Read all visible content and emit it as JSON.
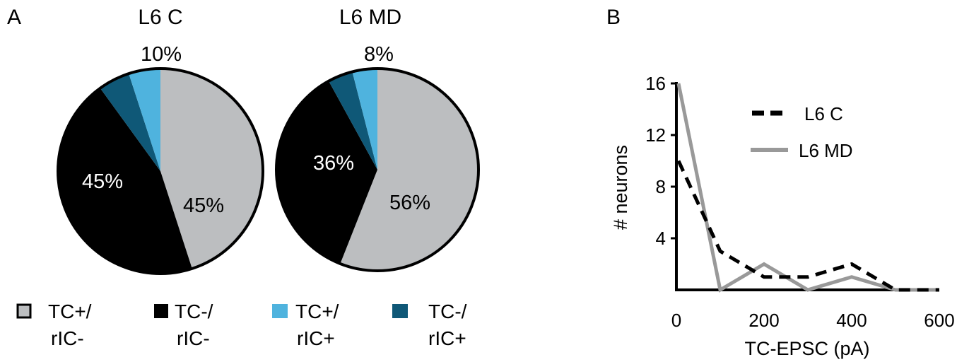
{
  "panels": {
    "a": "A",
    "b": "B"
  },
  "colors": {
    "TC+/rIC-": "#bcbec0",
    "TC-/rIC-": "#000000",
    "TC+/rIC+": "#4fb3de",
    "TC-/rIC+": "#0f5877"
  },
  "legend": [
    {
      "line1": "TC+/",
      "line2": "rIC-",
      "key": "TC+/rIC-"
    },
    {
      "line1": "TC-/",
      "line2": "rIC-",
      "key": "TC-/rIC-"
    },
    {
      "line1": "TC+/",
      "line2": "rIC+",
      "key": "TC+/rIC+"
    },
    {
      "line1": "TC-/",
      "line2": "rIC+",
      "key": "TC-/rIC+"
    }
  ],
  "chart_data": [
    {
      "type": "pie",
      "title": "L6 C",
      "slices": [
        {
          "label": "TC+/rIC-",
          "value": 45,
          "text": "45%"
        },
        {
          "label": "TC-/rIC-",
          "value": 45,
          "text": "45%"
        },
        {
          "label": "TC-/rIC+",
          "value": 5,
          "text": ""
        },
        {
          "label": "TC+/rIC+",
          "value": 5,
          "text": ""
        }
      ],
      "annotation": "10%"
    },
    {
      "type": "pie",
      "title": "L6 MD",
      "slices": [
        {
          "label": "TC+/rIC-",
          "value": 56,
          "text": "56%"
        },
        {
          "label": "TC-/rIC-",
          "value": 36,
          "text": "36%"
        },
        {
          "label": "TC-/rIC+",
          "value": 4,
          "text": ""
        },
        {
          "label": "TC+/rIC+",
          "value": 4,
          "text": ""
        }
      ],
      "annotation": "8%"
    },
    {
      "type": "line",
      "xlabel": "TC-EPSC (pA)",
      "ylabel": "# neurons",
      "xlim": [
        0,
        600
      ],
      "ylim": [
        0,
        16
      ],
      "xticks": [
        0,
        200,
        400,
        600
      ],
      "yticks": [
        4,
        8,
        12,
        16
      ],
      "legend_position": "top-right",
      "series": [
        {
          "name": "L6 C",
          "style": "dashed",
          "color": "#000000",
          "x": [
            0,
            100,
            200,
            300,
            400,
            500,
            600
          ],
          "y": [
            10,
            3,
            1,
            1,
            2,
            0,
            0
          ]
        },
        {
          "name": "L6 MD",
          "style": "solid",
          "color": "#999999",
          "x": [
            0,
            100,
            200,
            300,
            400,
            500,
            600
          ],
          "y": [
            16,
            0,
            2,
            0,
            1,
            0,
            0
          ]
        }
      ]
    }
  ]
}
